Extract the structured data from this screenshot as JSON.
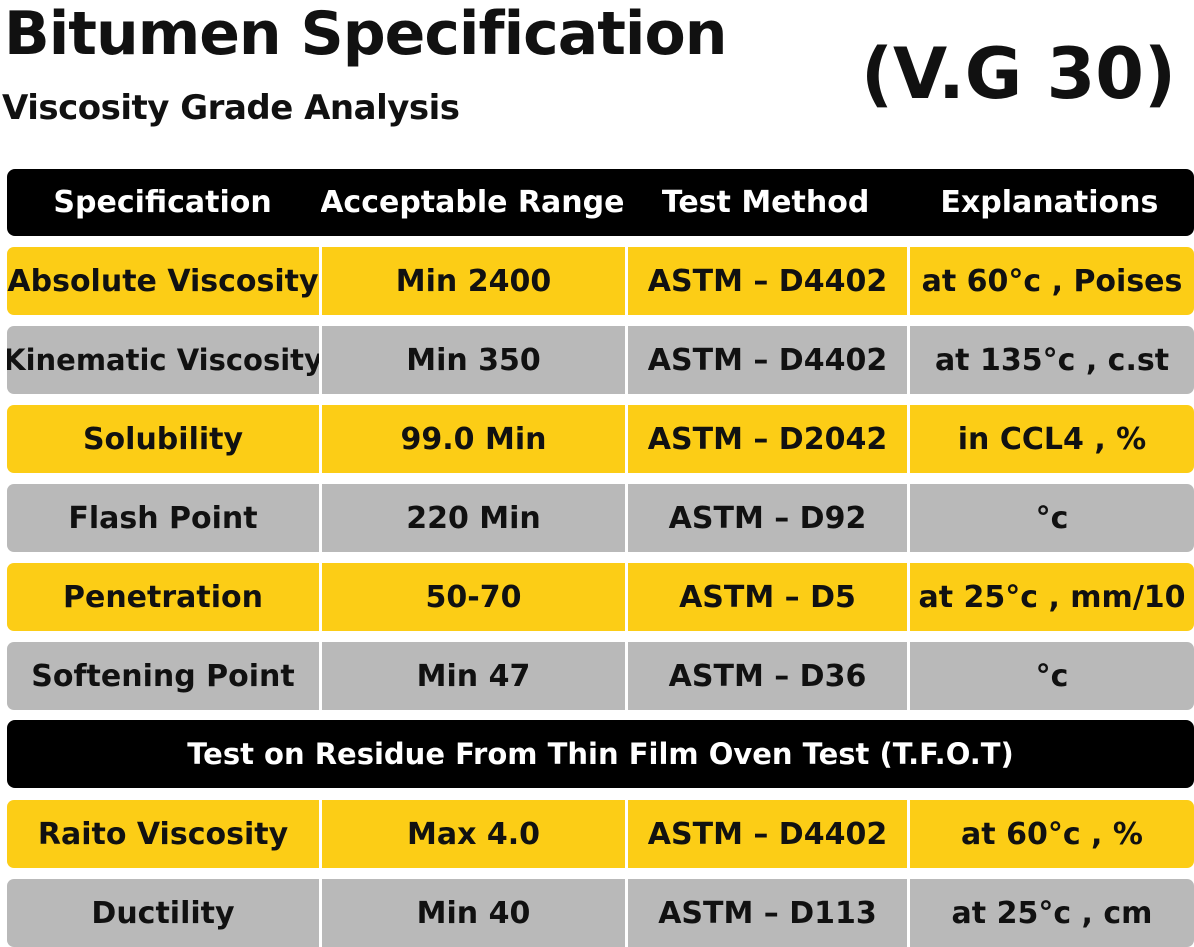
{
  "header": {
    "title": "Bitumen Specification",
    "subtitle": "Viscosity Grade Analysis",
    "grade": "(V.G 30)"
  },
  "colors": {
    "accent_yellow": "#fccd16",
    "row_gray": "#b9b9b9",
    "header_black": "#000000"
  },
  "table": {
    "columns": [
      "Specification",
      "Acceptable Range",
      "Test Method",
      "Explanations"
    ],
    "rows": [
      [
        "Absolute Viscosity",
        "Min 2400",
        "ASTM – D4402",
        "at 60°c , Poises"
      ],
      [
        "Kinematic Viscosity",
        "Min 350",
        "ASTM – D4402",
        "at 135°c , c.st"
      ],
      [
        "Solubility",
        "99.0 Min",
        "ASTM – D2042",
        "in CCL4 , %"
      ],
      [
        "Flash Point",
        "220 Min",
        "ASTM – D92",
        "°c"
      ],
      [
        "Penetration",
        "50-70",
        "ASTM – D5",
        "at 25°c , mm/10"
      ],
      [
        "Softening Point",
        "Min 47",
        "ASTM – D36",
        "°c"
      ]
    ],
    "section_title": "Test on Residue From Thin Film Oven Test (T.F.O.T)",
    "residue_rows": [
      [
        "Raito Viscosity",
        "Max 4.0",
        "ASTM – D4402",
        "at 60°c , %"
      ],
      [
        "Ductility",
        "Min 40",
        "ASTM – D113",
        "at 25°c , cm"
      ]
    ]
  }
}
